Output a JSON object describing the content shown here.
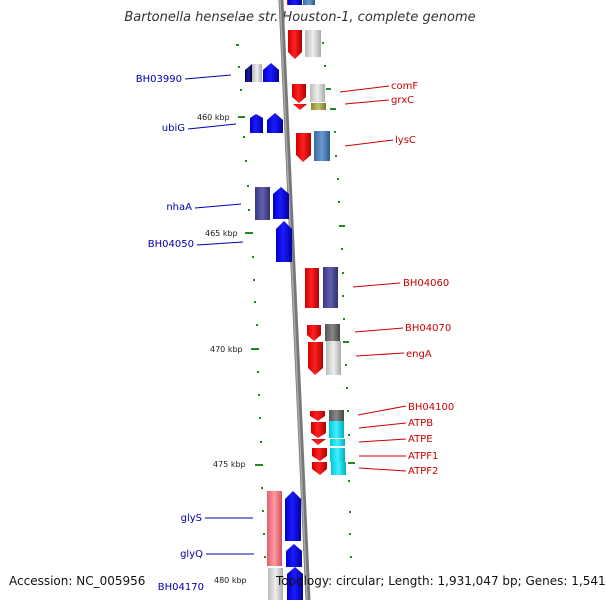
{
  "title": "Bartonella henselae str. Houston-1, complete genome",
  "footer": {
    "accession": "Accession: NC_005956",
    "summary": "Topology: circular; Length: 1,931,047 bp; Genes: 1,541"
  },
  "scale_labels": [
    "460 kbp",
    "465 kbp",
    "470 kbp",
    "475 kbp",
    "480 kbp"
  ],
  "genes_left": [
    "BH03990",
    "ubiG",
    "nhaA",
    "BH04050",
    "glyS",
    "glyQ",
    "BH04170"
  ],
  "genes_right": [
    "comF",
    "grxC",
    "lysC",
    "BH04060",
    "BH04070",
    "engA",
    "BH04100",
    "ATPB",
    "ATPE",
    "ATPF1",
    "ATPF2"
  ],
  "colors": {
    "forward_strand": "#1a1aee",
    "reverse_strand": "#ee1111",
    "backbone": "#888888",
    "tick": "#1e8a1e",
    "left_label": "#0000aa",
    "right_label": "#cc0000"
  }
}
